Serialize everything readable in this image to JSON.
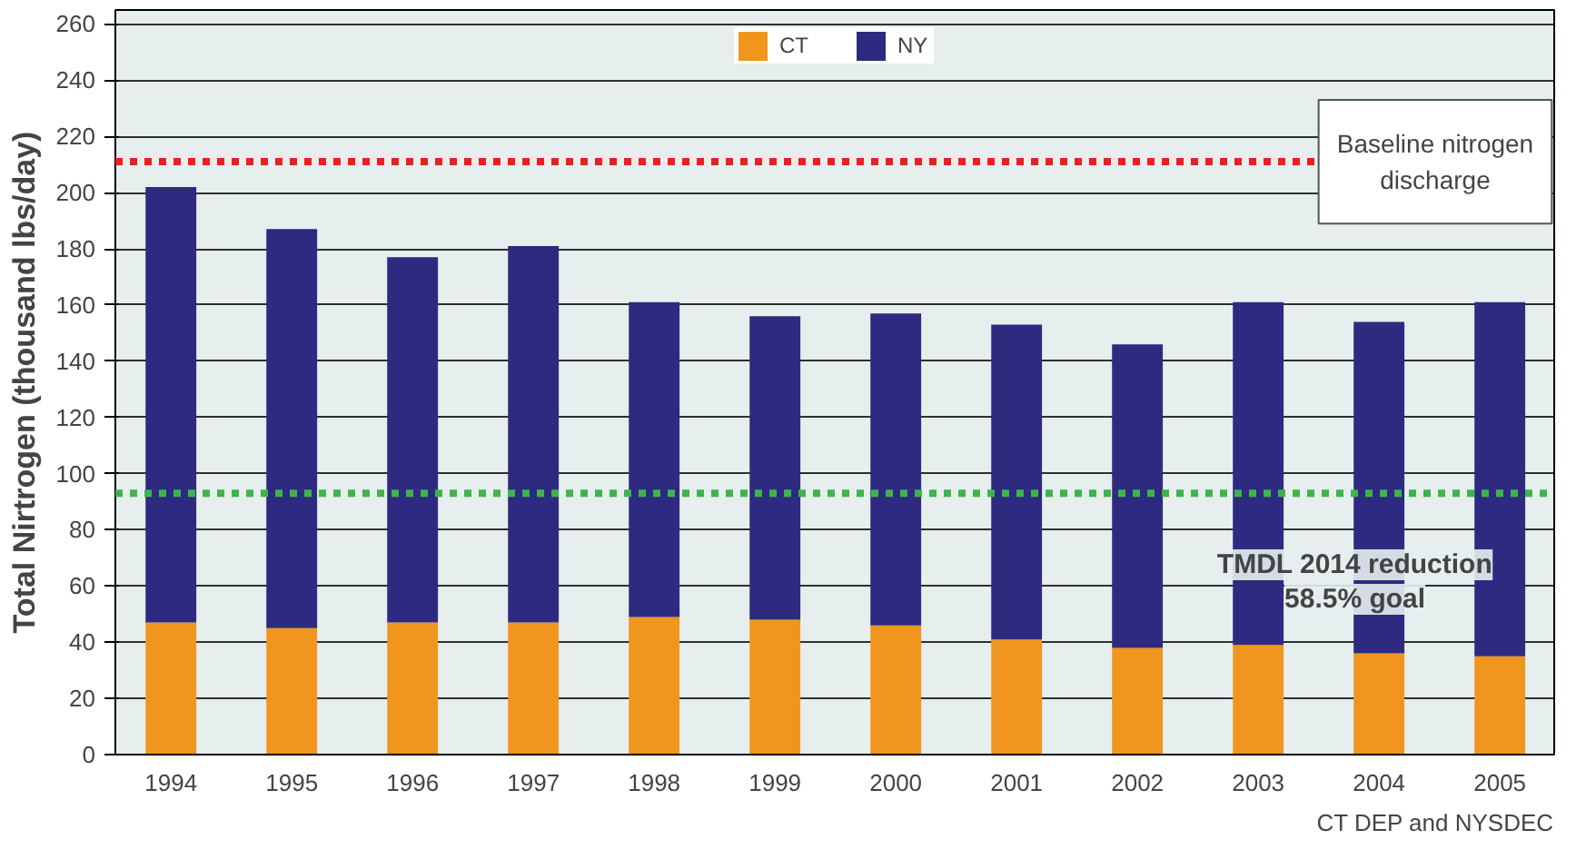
{
  "chart_data": {
    "type": "bar",
    "stacked": true,
    "ylabel": "Total Nirtrogen (thousand lbs/day)",
    "categories": [
      "1994",
      "1995",
      "1996",
      "1997",
      "1998",
      "1999",
      "2000",
      "2001",
      "2002",
      "2003",
      "2004",
      "2005"
    ],
    "series": [
      {
        "name": "CT",
        "color": "#f0961e",
        "values": [
          47,
          45,
          47,
          47,
          49,
          48,
          46,
          41,
          38,
          39,
          36,
          35
        ]
      },
      {
        "name": "NY",
        "color": "#2e2a80",
        "values": [
          155,
          142,
          130,
          134,
          112,
          108,
          111,
          112,
          108,
          122,
          118,
          126
        ]
      }
    ],
    "ylim": [
      0,
      265
    ],
    "yticks": [
      0,
      20,
      40,
      60,
      80,
      100,
      120,
      140,
      160,
      180,
      200,
      220,
      240,
      260
    ],
    "grid": "y",
    "legend": "top",
    "ref_lines": [
      {
        "axis": "y",
        "value": 211,
        "label": "Baseline nitrogen\ndischarge",
        "color": "#e8201e",
        "line_style": "dotted"
      },
      {
        "axis": "y",
        "value": 93,
        "label": "TMDL 2014 reduction\n58.5% goal",
        "color": "#3db54a",
        "line_style": "dotted"
      }
    ],
    "annotations": [
      "CT DEP and NYSDEC"
    ]
  }
}
